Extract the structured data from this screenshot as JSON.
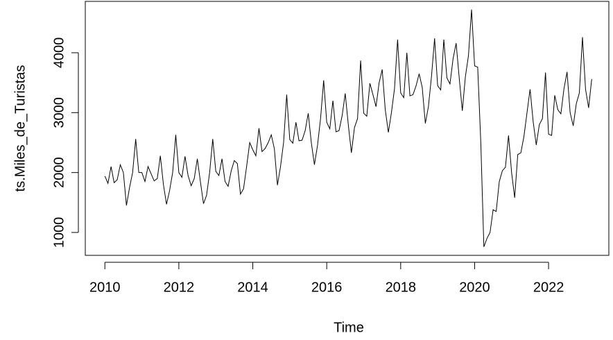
{
  "chart_data": {
    "type": "line",
    "xlabel": "Time",
    "ylabel": "ts.Miles_de_Turistas",
    "x": [
      2010,
      2010.083,
      2010.167,
      2010.25,
      2010.333,
      2010.417,
      2010.5,
      2010.583,
      2010.667,
      2010.75,
      2010.833,
      2010.917,
      2011,
      2011.083,
      2011.167,
      2011.25,
      2011.333,
      2011.417,
      2011.5,
      2011.583,
      2011.667,
      2011.75,
      2011.833,
      2011.917,
      2012,
      2012.083,
      2012.167,
      2012.25,
      2012.333,
      2012.417,
      2012.5,
      2012.583,
      2012.667,
      2012.75,
      2012.833,
      2012.917,
      2013,
      2013.083,
      2013.167,
      2013.25,
      2013.333,
      2013.417,
      2013.5,
      2013.583,
      2013.667,
      2013.75,
      2013.833,
      2013.917,
      2014,
      2014.083,
      2014.167,
      2014.25,
      2014.333,
      2014.417,
      2014.5,
      2014.583,
      2014.667,
      2014.75,
      2014.833,
      2014.917,
      2015,
      2015.083,
      2015.167,
      2015.25,
      2015.333,
      2015.417,
      2015.5,
      2015.583,
      2015.667,
      2015.75,
      2015.833,
      2015.917,
      2016,
      2016.083,
      2016.167,
      2016.25,
      2016.333,
      2016.417,
      2016.5,
      2016.583,
      2016.667,
      2016.75,
      2016.833,
      2016.917,
      2017,
      2017.083,
      2017.167,
      2017.25,
      2017.333,
      2017.417,
      2017.5,
      2017.583,
      2017.667,
      2017.75,
      2017.833,
      2017.917,
      2018,
      2018.083,
      2018.167,
      2018.25,
      2018.333,
      2018.417,
      2018.5,
      2018.583,
      2018.667,
      2018.75,
      2018.833,
      2018.917,
      2019,
      2019.083,
      2019.167,
      2019.25,
      2019.333,
      2019.417,
      2019.5,
      2019.583,
      2019.667,
      2019.75,
      2019.833,
      2019.917,
      2020,
      2020.083,
      2020.167,
      2020.25,
      2020.333,
      2020.417,
      2020.5,
      2020.583,
      2020.667,
      2020.75,
      2020.833,
      2020.917,
      2021,
      2021.083,
      2021.167,
      2021.25,
      2021.333,
      2021.417,
      2021.5,
      2021.583,
      2021.667,
      2021.75,
      2021.833,
      2021.917,
      2022,
      2022.083,
      2022.167,
      2022.25,
      2022.333,
      2022.417,
      2022.5,
      2022.583,
      2022.667,
      2022.75,
      2022.833,
      2022.917,
      2023,
      2023.083,
      2023.167
    ],
    "values": [
      1940,
      1820,
      2100,
      1830,
      1880,
      2130,
      2000,
      1450,
      1750,
      2000,
      2560,
      2000,
      2000,
      1850,
      2100,
      1980,
      1860,
      1900,
      2280,
      1800,
      1470,
      1700,
      2000,
      2630,
      2000,
      1920,
      2270,
      1950,
      1780,
      1900,
      2230,
      1850,
      1480,
      1620,
      2000,
      2560,
      2020,
      1950,
      2230,
      1850,
      1770,
      2030,
      2200,
      2150,
      1640,
      1730,
      2100,
      2500,
      2380,
      2280,
      2740,
      2350,
      2400,
      2500,
      2630,
      2400,
      1790,
      2100,
      2500,
      3300,
      2550,
      2490,
      2840,
      2530,
      2540,
      2700,
      2990,
      2500,
      2130,
      2450,
      2900,
      3540,
      2840,
      2730,
      3200,
      2680,
      2700,
      2950,
      3320,
      2800,
      2330,
      2750,
      2900,
      3870,
      2990,
      2940,
      3490,
      3300,
      3100,
      3500,
      3720,
      3050,
      2670,
      3000,
      3400,
      4220,
      3330,
      3250,
      4000,
      3280,
      3300,
      3450,
      3650,
      3420,
      2820,
      3100,
      3600,
      4240,
      3450,
      3380,
      4220,
      3580,
      3480,
      3900,
      4160,
      3580,
      3030,
      3600,
      3950,
      4720,
      3780,
      3760,
      2500,
      760,
      900,
      1000,
      1380,
      1350,
      1850,
      2030,
      2090,
      2620,
      2000,
      1580,
      2300,
      2330,
      2600,
      3000,
      3390,
      2850,
      2460,
      2800,
      2900,
      3670,
      2640,
      2620,
      3290,
      3050,
      2980,
      3400,
      3680,
      3000,
      2780,
      3150,
      3330,
      4260,
      3390,
      3080,
      3560
    ],
    "color": "#000000",
    "xlim": [
      2009.47,
      2023.63
    ],
    "ylim": [
      618,
      4857
    ],
    "xticks": [
      2010,
      2012,
      2014,
      2016,
      2018,
      2020,
      2022
    ],
    "yticks": [
      1000,
      2000,
      3000,
      4000
    ]
  }
}
